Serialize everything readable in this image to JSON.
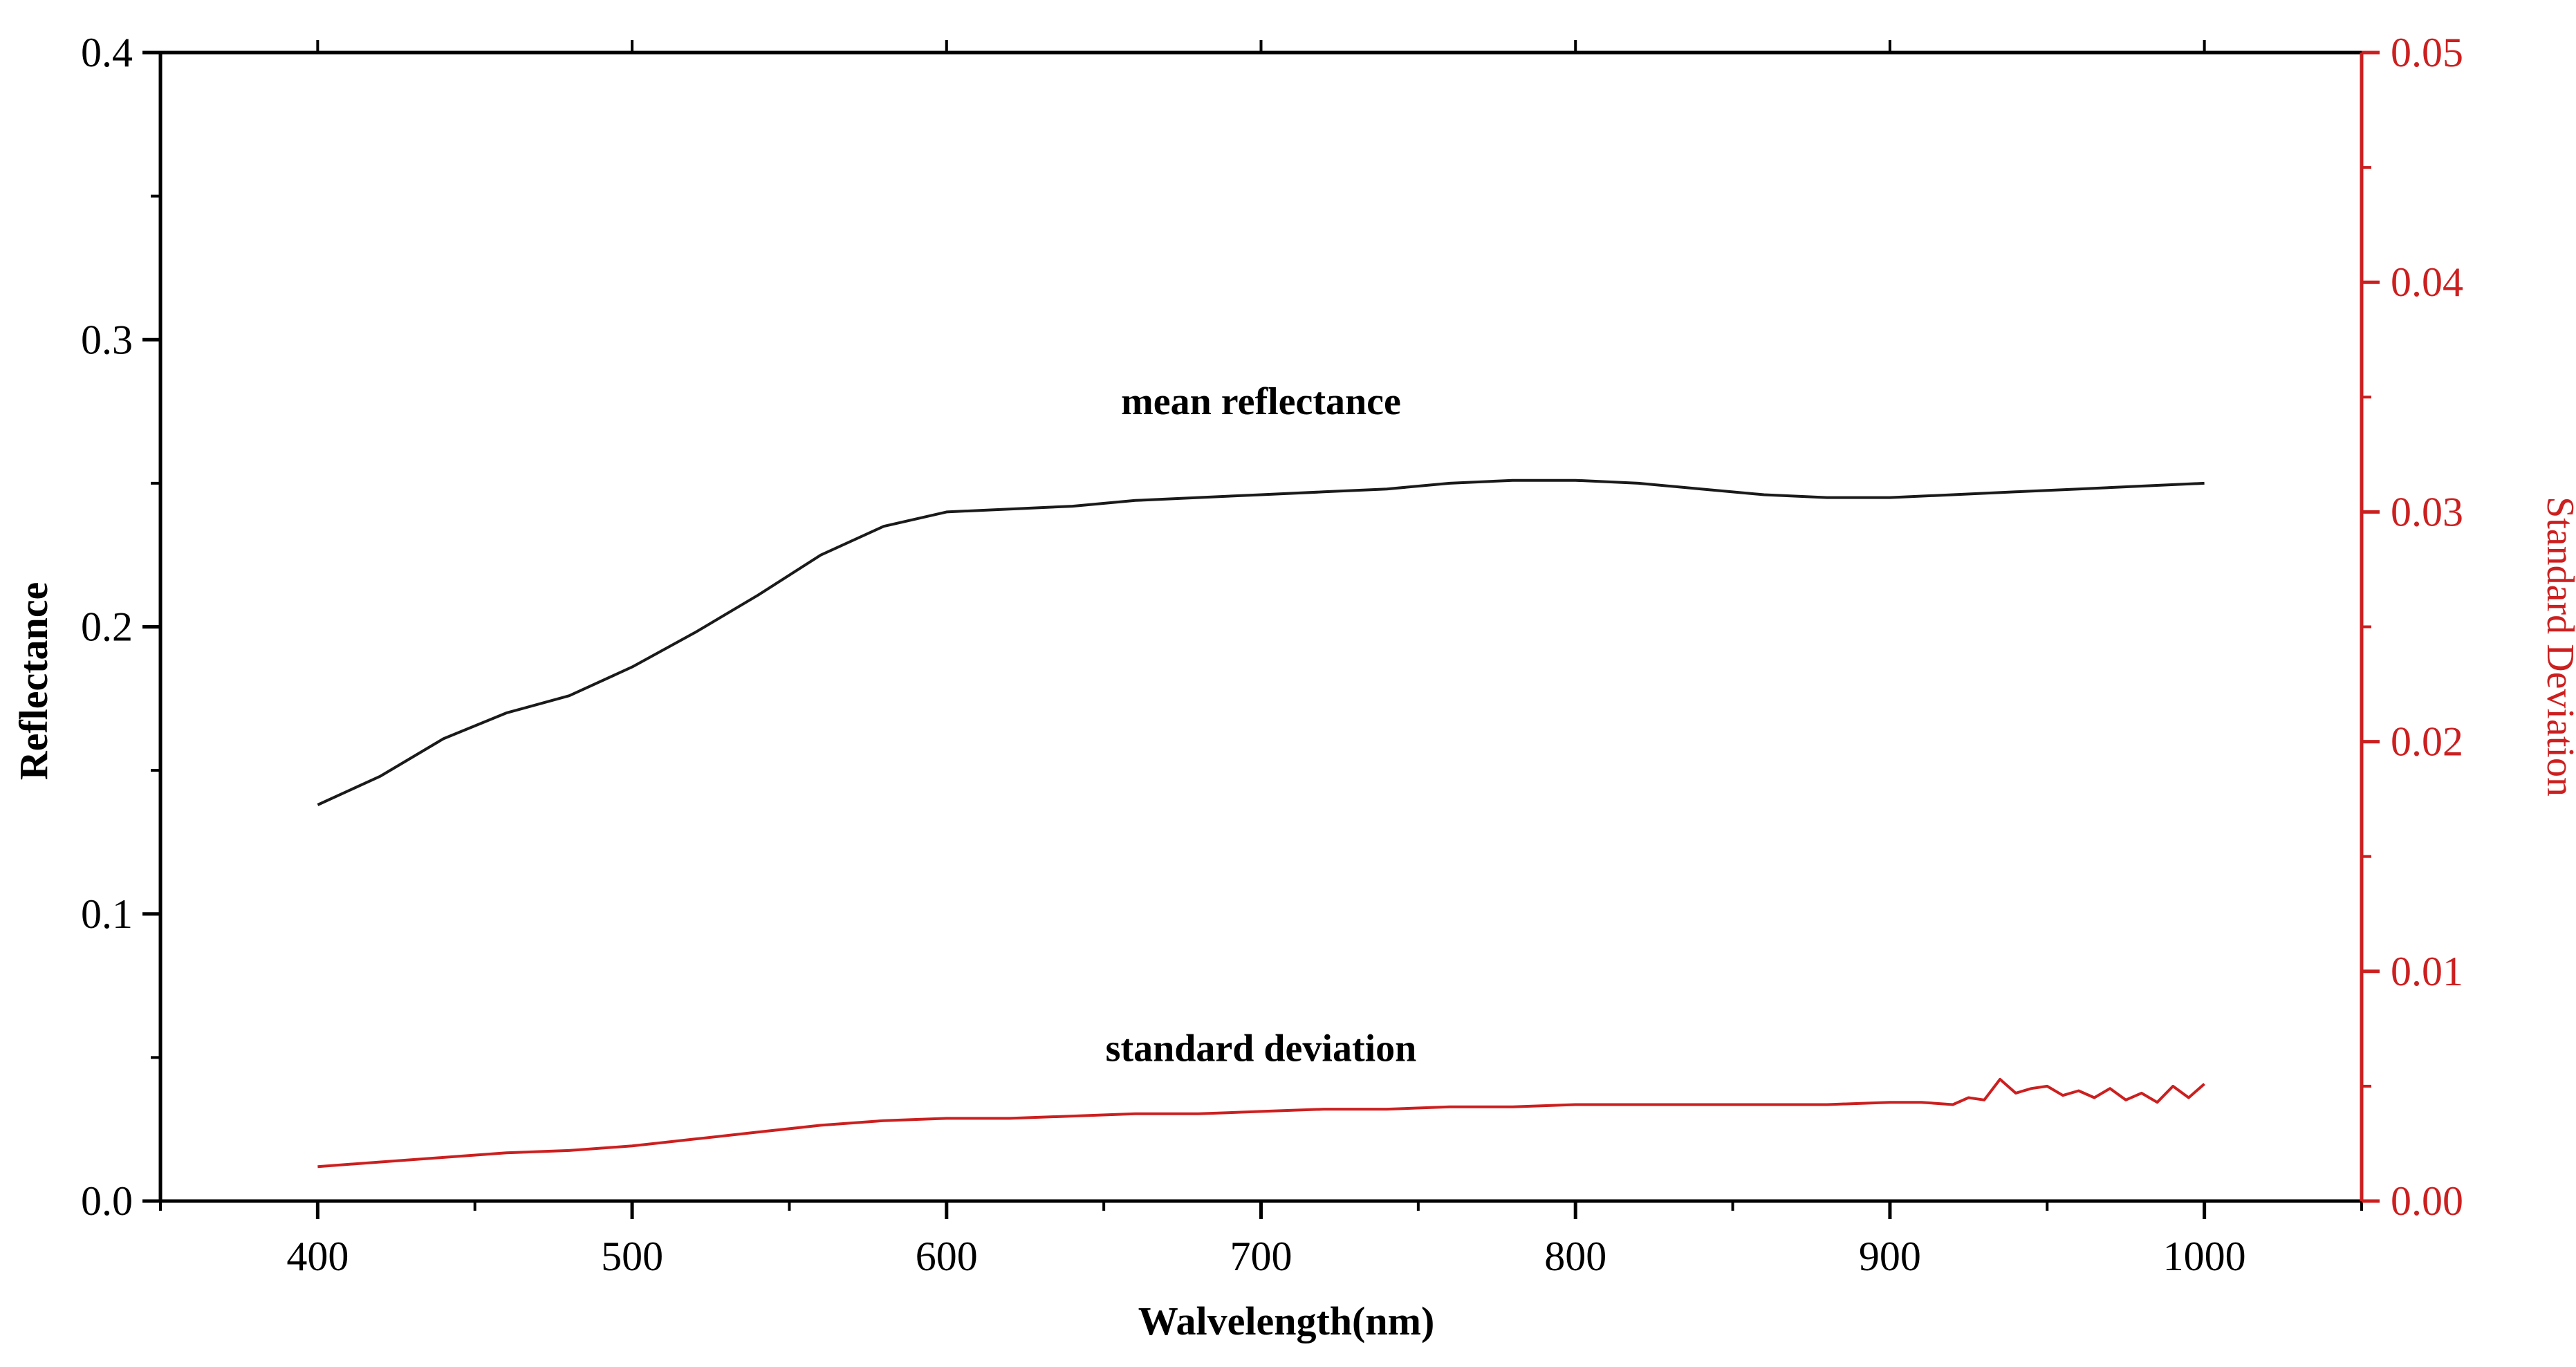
{
  "chart_data": {
    "type": "line",
    "title": "",
    "xlabel": "Walvelength(nm)",
    "ylabel": "Reflectance",
    "y2label": "Standard Deviation",
    "xlim": [
      350,
      1050
    ],
    "ylim": [
      0,
      0.4
    ],
    "y2lim": [
      0,
      0.05
    ],
    "x_ticks": [
      400,
      500,
      600,
      700,
      800,
      900,
      1000
    ],
    "y_ticks": [
      0.0,
      0.1,
      0.2,
      0.3,
      0.4
    ],
    "y_tick_labels": [
      "0.0",
      "0.1",
      "0.2",
      "0.3",
      "0.4"
    ],
    "y2_ticks": [
      0.0,
      0.01,
      0.02,
      0.03,
      0.04,
      0.05
    ],
    "y2_tick_labels": [
      "0.00",
      "0.01",
      "0.02",
      "0.03",
      "0.04",
      "0.05"
    ],
    "grid": false,
    "colors": {
      "axis": "#000000",
      "right_axis": "#cc1f1f",
      "mean": "#1a1a1a",
      "std": "#cc1f1f"
    },
    "series": [
      {
        "name": "mean reflectance",
        "axis": "left",
        "label_x": 700,
        "label_y": 0.274,
        "x": [
          400,
          420,
          440,
          460,
          480,
          500,
          520,
          540,
          560,
          580,
          600,
          620,
          640,
          660,
          680,
          700,
          720,
          740,
          760,
          780,
          800,
          820,
          840,
          860,
          880,
          900,
          920,
          940,
          960,
          980,
          1000
        ],
        "values": [
          0.138,
          0.148,
          0.161,
          0.17,
          0.176,
          0.186,
          0.198,
          0.211,
          0.225,
          0.235,
          0.24,
          0.241,
          0.242,
          0.244,
          0.245,
          0.246,
          0.247,
          0.248,
          0.25,
          0.251,
          0.251,
          0.25,
          0.248,
          0.246,
          0.245,
          0.245,
          0.246,
          0.247,
          0.248,
          0.249,
          0.25
        ]
      },
      {
        "name": "standard deviation",
        "axis": "right",
        "label_x": 700,
        "label_y": 0.0061,
        "x": [
          400,
          420,
          440,
          460,
          480,
          500,
          520,
          540,
          560,
          580,
          600,
          620,
          640,
          660,
          680,
          700,
          720,
          740,
          760,
          780,
          800,
          820,
          840,
          860,
          880,
          900,
          910,
          920,
          925,
          930,
          935,
          940,
          945,
          950,
          955,
          960,
          965,
          970,
          975,
          980,
          985,
          990,
          995,
          1000
        ],
        "values": [
          0.0015,
          0.0017,
          0.0019,
          0.0021,
          0.0022,
          0.0024,
          0.0027,
          0.003,
          0.0033,
          0.0035,
          0.0036,
          0.0036,
          0.0037,
          0.0038,
          0.0038,
          0.0039,
          0.004,
          0.004,
          0.0041,
          0.0041,
          0.0042,
          0.0042,
          0.0042,
          0.0042,
          0.0042,
          0.0043,
          0.0043,
          0.0042,
          0.0045,
          0.0044,
          0.0053,
          0.0047,
          0.0049,
          0.005,
          0.0046,
          0.0048,
          0.0045,
          0.0049,
          0.0044,
          0.0047,
          0.0043,
          0.005,
          0.0045,
          0.0051
        ]
      }
    ]
  }
}
